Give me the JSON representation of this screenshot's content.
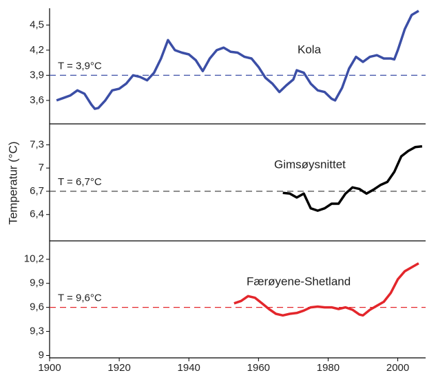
{
  "chart_data": [
    {
      "type": "line",
      "x": [
        1902,
        1904,
        1906,
        1908,
        1910,
        1912,
        1913,
        1914,
        1916,
        1918,
        1920,
        1922,
        1924,
        1926,
        1928,
        1930,
        1932,
        1934,
        1936,
        1938,
        1940,
        1942,
        1944,
        1946,
        1948,
        1950,
        1952,
        1954,
        1956,
        1958,
        1960,
        1962,
        1964,
        1966,
        1968,
        1970,
        1971,
        1973,
        1975,
        1977,
        1979,
        1981,
        1982,
        1984,
        1986,
        1988,
        1990,
        1992,
        1994,
        1996,
        1998,
        1999,
        2000,
        2002,
        2004,
        2006
      ],
      "series": [
        {
          "name": "Kola",
          "color": "#3b4ea6",
          "values": [
            3.6,
            3.63,
            3.66,
            3.72,
            3.68,
            3.55,
            3.5,
            3.51,
            3.6,
            3.72,
            3.74,
            3.8,
            3.9,
            3.88,
            3.84,
            3.93,
            4.1,
            4.32,
            4.2,
            4.17,
            4.15,
            4.08,
            3.95,
            4.1,
            4.2,
            4.23,
            4.18,
            4.17,
            4.12,
            4.1,
            4.0,
            3.87,
            3.8,
            3.7,
            3.78,
            3.85,
            3.96,
            3.93,
            3.8,
            3.72,
            3.7,
            3.62,
            3.6,
            3.75,
            3.98,
            4.12,
            4.06,
            4.12,
            4.14,
            4.1,
            4.1,
            4.09,
            4.2,
            4.45,
            4.62,
            4.67
          ]
        }
      ],
      "xlim": [
        1900,
        2008
      ],
      "ylim": [
        3.32,
        4.7
      ],
      "yticks": [
        {
          "value": 3.6,
          "label": "3,6"
        },
        {
          "value": 3.9,
          "label": "3,9"
        },
        {
          "value": 4.2,
          "label": "4,2"
        },
        {
          "value": 4.5,
          "label": "4,5"
        }
      ],
      "reference_line": {
        "value": 3.9,
        "label": "T = 3,9°C",
        "color": "#3b4ea6"
      }
    },
    {
      "type": "line",
      "ylabel": "Temperatur (°C)",
      "x": [
        1967,
        1969,
        1971,
        1973,
        1975,
        1977,
        1979,
        1981,
        1983,
        1985,
        1987,
        1989,
        1991,
        1993,
        1995,
        1997,
        1999,
        2001,
        2003,
        2005,
        2007
      ],
      "series": [
        {
          "name": "Gimsøysnittet",
          "color": "#000000",
          "values": [
            6.68,
            6.67,
            6.62,
            6.67,
            6.48,
            6.45,
            6.48,
            6.54,
            6.54,
            6.67,
            6.75,
            6.73,
            6.67,
            6.72,
            6.78,
            6.82,
            6.95,
            7.15,
            7.22,
            7.27,
            7.28
          ]
        }
      ],
      "xlim": [
        1900,
        2008
      ],
      "ylim": [
        6.06,
        7.57
      ],
      "yticks": [
        {
          "value": 6.4,
          "label": "6,4"
        },
        {
          "value": 6.7,
          "label": "6,7"
        },
        7,
        {
          "value": 7.3,
          "label": "7,3"
        }
      ],
      "reference_line": {
        "value": 6.7,
        "label": "T = 6,7°C",
        "color": "#333333"
      }
    },
    {
      "type": "line",
      "x": [
        1953,
        1955,
        1957,
        1959,
        1961,
        1963,
        1965,
        1967,
        1969,
        1971,
        1973,
        1975,
        1977,
        1979,
        1981,
        1983,
        1985,
        1987,
        1989,
        1990,
        1992,
        1994,
        1996,
        1998,
        2000,
        2002,
        2004,
        2006
      ],
      "series": [
        {
          "name": "Færøyene-Shetland",
          "color": "#e3262b",
          "values": [
            9.65,
            9.68,
            9.74,
            9.72,
            9.65,
            9.58,
            9.52,
            9.5,
            9.52,
            9.53,
            9.56,
            9.6,
            9.61,
            9.6,
            9.6,
            9.58,
            9.6,
            9.57,
            9.51,
            9.5,
            9.57,
            9.62,
            9.67,
            9.78,
            9.95,
            10.05,
            10.1,
            10.15
          ]
        }
      ],
      "xlim": [
        1900,
        2008
      ],
      "ylim": [
        8.97,
        10.43
      ],
      "xticks": [
        1900,
        1920,
        1940,
        1960,
        1980,
        2000
      ],
      "yticks": [
        9,
        {
          "value": 9.3,
          "label": "9,3"
        },
        {
          "value": 9.6,
          "label": "9,6"
        },
        {
          "value": 9.9,
          "label": "9,9"
        },
        {
          "value": 10.2,
          "label": "10,2"
        }
      ],
      "reference_line": {
        "value": 9.6,
        "label": "T = 9,6°C",
        "color": "#e3262b"
      }
    }
  ]
}
